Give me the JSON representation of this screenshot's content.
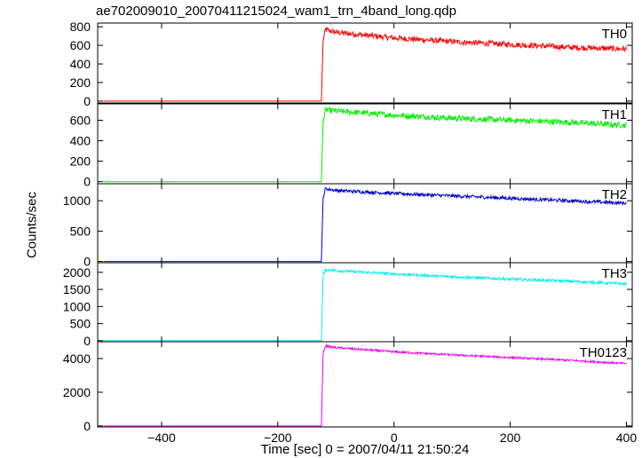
{
  "chart_data": {
    "type": "line",
    "title": "ae702009010_20070411215024_wam1_trn_4band_long.qdp",
    "xlabel": "Time [sec] 0 = 2007/04/11 21:50:24",
    "ylabel": "Counts/sec",
    "xlim": [
      -510,
      410
    ],
    "x_ticks": [
      -400,
      -200,
      0,
      200,
      400
    ],
    "grid": false,
    "panels": [
      {
        "name": "TH0",
        "color": "#ff0000",
        "ylim": [
          -20,
          840
        ],
        "y_ticks": [
          0,
          200,
          400,
          600,
          800
        ],
        "series": [
          {
            "x": -500,
            "y": 0
          },
          {
            "x": -125,
            "y": 0
          },
          {
            "x": -122,
            "y": 650
          },
          {
            "x": -118,
            "y": 770
          },
          {
            "x": -100,
            "y": 740
          },
          {
            "x": 0,
            "y": 680
          },
          {
            "x": 100,
            "y": 640
          },
          {
            "x": 200,
            "y": 610
          },
          {
            "x": 300,
            "y": 580
          },
          {
            "x": 400,
            "y": 560
          }
        ],
        "noise": 30
      },
      {
        "name": "TH1",
        "color": "#00ee00",
        "ylim": [
          -20,
          760
        ],
        "y_ticks": [
          0,
          200,
          400,
          600
        ],
        "series": [
          {
            "x": -500,
            "y": 0
          },
          {
            "x": -125,
            "y": 0
          },
          {
            "x": -122,
            "y": 600
          },
          {
            "x": -118,
            "y": 700
          },
          {
            "x": -100,
            "y": 690
          },
          {
            "x": 0,
            "y": 650
          },
          {
            "x": 100,
            "y": 620
          },
          {
            "x": 200,
            "y": 600
          },
          {
            "x": 300,
            "y": 580
          },
          {
            "x": 400,
            "y": 550
          }
        ],
        "noise": 28
      },
      {
        "name": "TH2",
        "color": "#0000cc",
        "ylim": [
          -20,
          1280
        ],
        "y_ticks": [
          0,
          500,
          1000
        ],
        "series": [
          {
            "x": -500,
            "y": 0
          },
          {
            "x": -125,
            "y": 0
          },
          {
            "x": -122,
            "y": 1050
          },
          {
            "x": -118,
            "y": 1200
          },
          {
            "x": -100,
            "y": 1170
          },
          {
            "x": 0,
            "y": 1120
          },
          {
            "x": 100,
            "y": 1080
          },
          {
            "x": 200,
            "y": 1040
          },
          {
            "x": 300,
            "y": 1000
          },
          {
            "x": 400,
            "y": 960
          }
        ],
        "noise": 28
      },
      {
        "name": "TH3",
        "color": "#00eeee",
        "ylim": [
          -30,
          2280
        ],
        "y_ticks": [
          0,
          500,
          1000,
          1500,
          2000
        ],
        "series": [
          {
            "x": -500,
            "y": 0
          },
          {
            "x": -125,
            "y": 0
          },
          {
            "x": -122,
            "y": 1900
          },
          {
            "x": -118,
            "y": 2080
          },
          {
            "x": -100,
            "y": 2050
          },
          {
            "x": 0,
            "y": 1950
          },
          {
            "x": 100,
            "y": 1870
          },
          {
            "x": 200,
            "y": 1800
          },
          {
            "x": 300,
            "y": 1740
          },
          {
            "x": 400,
            "y": 1660
          }
        ],
        "noise": 40
      },
      {
        "name": "TH0123",
        "color": "#ee00ee",
        "ylim": [
          -60,
          5000
        ],
        "y_ticks": [
          0,
          2000,
          4000
        ],
        "series": [
          {
            "x": -500,
            "y": 0
          },
          {
            "x": -125,
            "y": 0
          },
          {
            "x": -122,
            "y": 4300
          },
          {
            "x": -118,
            "y": 4750
          },
          {
            "x": -100,
            "y": 4650
          },
          {
            "x": 0,
            "y": 4400
          },
          {
            "x": 100,
            "y": 4220
          },
          {
            "x": 200,
            "y": 4060
          },
          {
            "x": 300,
            "y": 3900
          },
          {
            "x": 400,
            "y": 3700
          }
        ],
        "noise": 60
      }
    ]
  }
}
